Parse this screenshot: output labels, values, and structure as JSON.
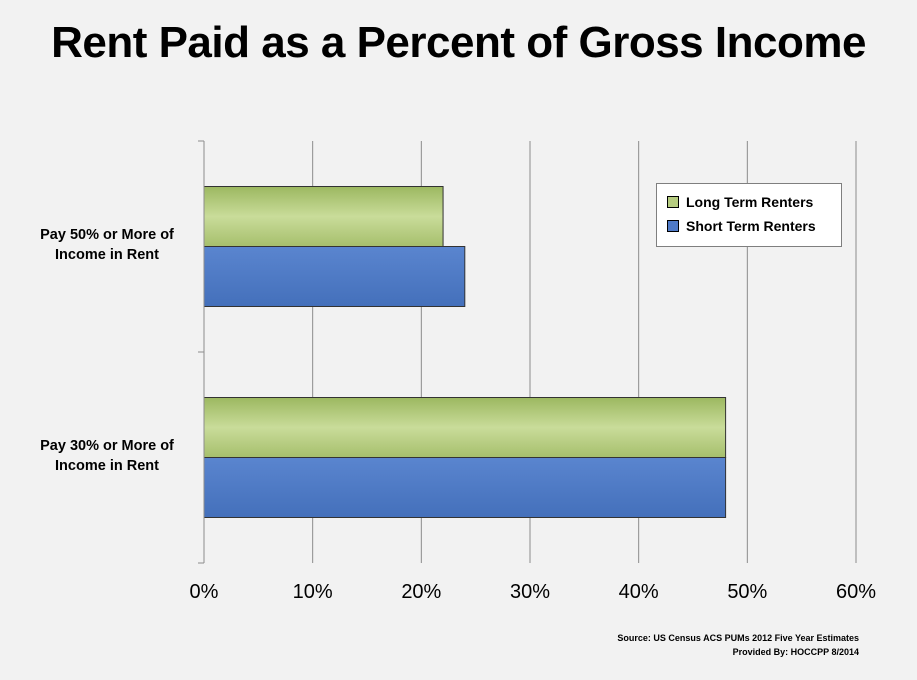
{
  "chart_data": {
    "type": "bar",
    "orientation": "horizontal",
    "title": "Rent Paid as a Percent of Gross Income",
    "categories": [
      [
        "Pay 50% or More of",
        "Income in Rent"
      ],
      [
        "Pay 30% or More of",
        "Income in Rent"
      ]
    ],
    "series": [
      {
        "name": "Long Term Renters",
        "color": "#b6cc80",
        "values": [
          22,
          48
        ]
      },
      {
        "name": "Short Term Renters",
        "color": "#4f7ac7",
        "values": [
          24,
          48
        ]
      }
    ],
    "xlim": [
      0,
      60
    ],
    "ticks": [
      0,
      10,
      20,
      30,
      40,
      50,
      60
    ],
    "tick_labels": [
      "0%",
      "10%",
      "20%",
      "30%",
      "40%",
      "50%",
      "60%"
    ],
    "grid": "vertical",
    "legend": "top-right",
    "source_lines": [
      "Source: US Census ACS PUMs 2012 Five Year Estimates",
      "Provided By: HOCCPP 8/2014"
    ]
  }
}
